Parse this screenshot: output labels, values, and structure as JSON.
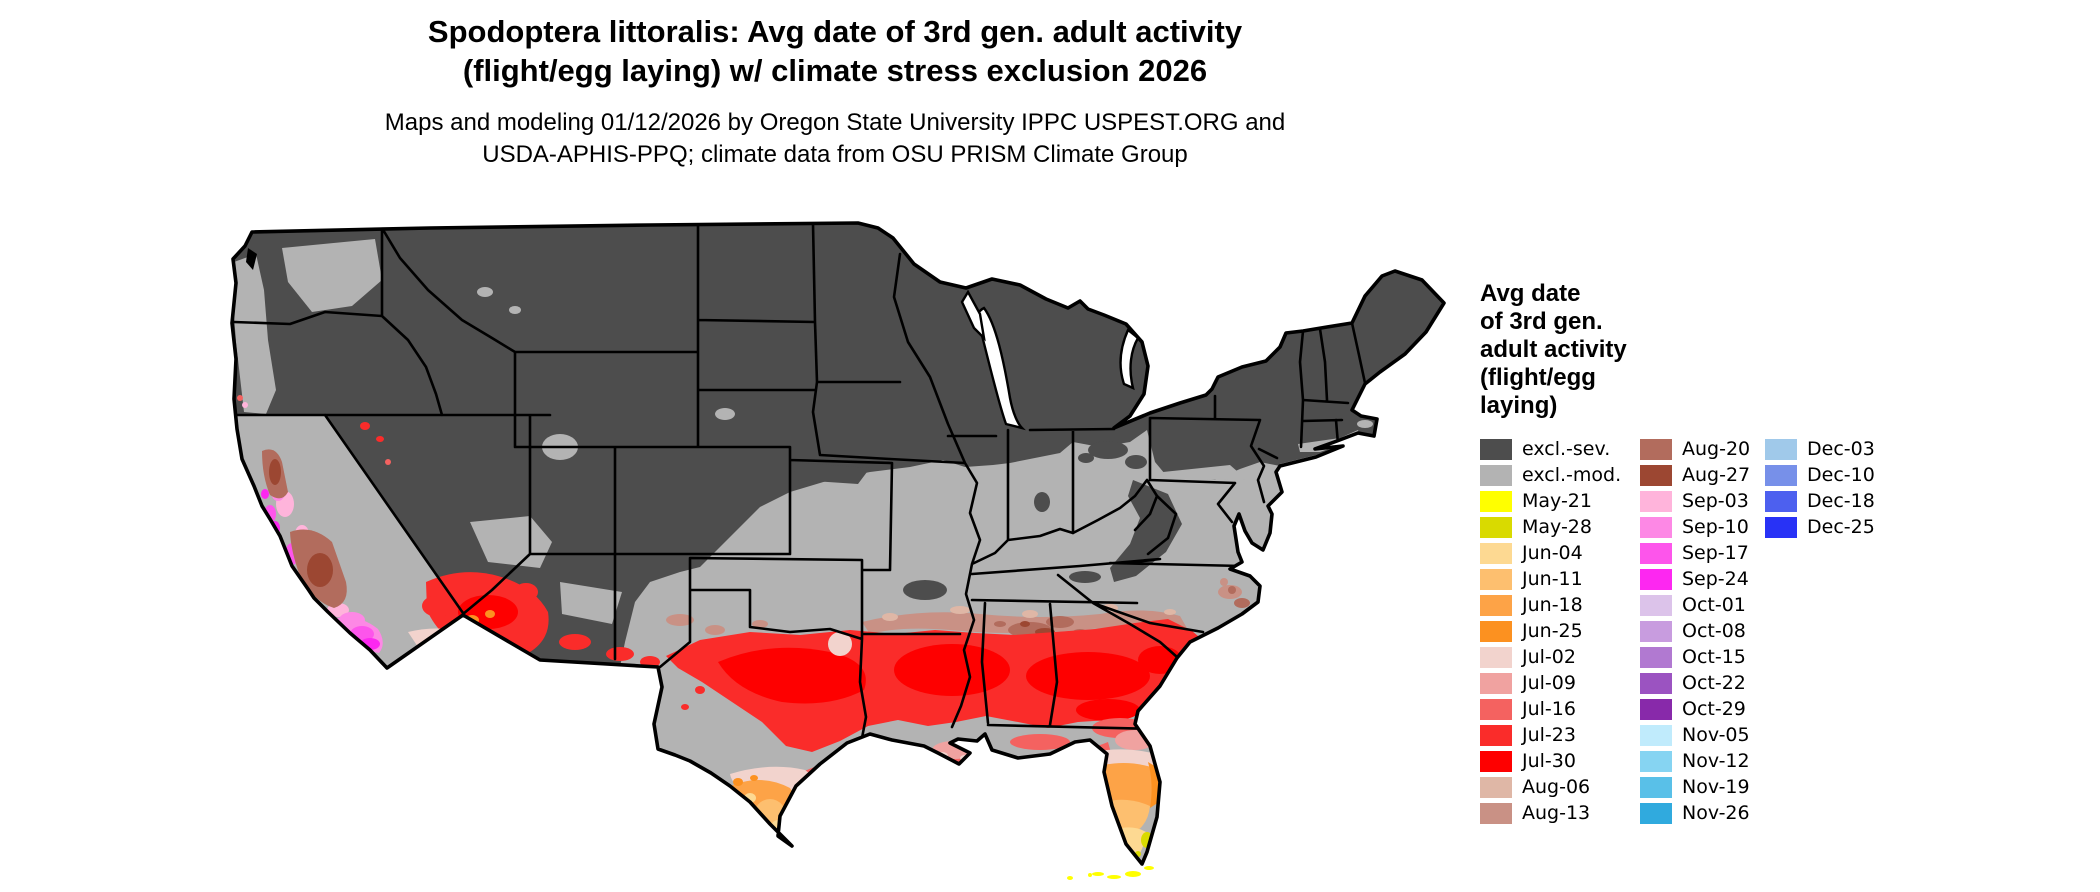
{
  "title": {
    "line1": "Spodoptera littoralis: Avg date of 3rd gen. adult activity",
    "line2": "(flight/egg laying) w/ climate stress exclusion 2026"
  },
  "subtitle": {
    "line1": "Maps and modeling 01/12/2026 by Oregon State University IPPC USPEST.ORG and",
    "line2": "USDA-APHIS-PPQ; climate data from OSU PRISM Climate Group"
  },
  "legend": {
    "title_lines": [
      "Avg date",
      "of 3rd gen.",
      "adult activity",
      "(flight/egg",
      "laying)"
    ],
    "columns": [
      [
        {
          "label": "excl.-sev.",
          "color": "#4d4d4d"
        },
        {
          "label": "excl.-mod.",
          "color": "#b3b3b3"
        },
        {
          "label": "May-21",
          "color": "#ffff00"
        },
        {
          "label": "May-28",
          "color": "#d9da00"
        },
        {
          "label": "Jun-04",
          "color": "#fdd992"
        },
        {
          "label": "Jun-11",
          "color": "#fdbf6f"
        },
        {
          "label": "Jun-18",
          "color": "#fda347"
        },
        {
          "label": "Jun-25",
          "color": "#fc9120"
        },
        {
          "label": "Jul-02",
          "color": "#f2d3cd"
        },
        {
          "label": "Jul-09",
          "color": "#f0a2a0"
        },
        {
          "label": "Jul-16",
          "color": "#f46260"
        },
        {
          "label": "Jul-23",
          "color": "#fa2c2a"
        },
        {
          "label": "Jul-30",
          "color": "#fe0000"
        },
        {
          "label": "Aug-06",
          "color": "#dfb7a6"
        },
        {
          "label": "Aug-13",
          "color": "#c99185"
        }
      ],
      [
        {
          "label": "Aug-20",
          "color": "#b26c5d"
        },
        {
          "label": "Aug-27",
          "color": "#9c4732"
        },
        {
          "label": "Sep-03",
          "color": "#ffb4db"
        },
        {
          "label": "Sep-10",
          "color": "#fd88e5"
        },
        {
          "label": "Sep-17",
          "color": "#fd55eb"
        },
        {
          "label": "Sep-24",
          "color": "#fd27f1"
        },
        {
          "label": "Oct-01",
          "color": "#dcc3ea"
        },
        {
          "label": "Oct-08",
          "color": "#c89cdf"
        },
        {
          "label": "Oct-15",
          "color": "#b179d1"
        },
        {
          "label": "Oct-22",
          "color": "#9b53c1"
        },
        {
          "label": "Oct-29",
          "color": "#8829aa"
        },
        {
          "label": "Nov-05",
          "color": "#c0ebfc"
        },
        {
          "label": "Nov-12",
          "color": "#86d4f2"
        },
        {
          "label": "Nov-19",
          "color": "#59c0e8"
        },
        {
          "label": "Nov-26",
          "color": "#30aade"
        }
      ],
      [
        {
          "label": "Dec-03",
          "color": "#a0c9ea"
        },
        {
          "label": "Dec-10",
          "color": "#7790e9"
        },
        {
          "label": "Dec-18",
          "color": "#4d60ef"
        },
        {
          "label": "Dec-25",
          "color": "#2832f6"
        }
      ]
    ]
  },
  "map": {
    "water_color": "#ffffff",
    "border_color": "#000000",
    "palette": {
      "excl_sev": "#4d4d4d",
      "excl_mod": "#b3b3b3",
      "may21": "#ffff00",
      "may28": "#d9da00",
      "jun04": "#fdd992",
      "jun11": "#fdbf6f",
      "jun18": "#fda347",
      "jun25": "#fc9120",
      "jul02": "#f2d3cd",
      "jul09": "#f0a2a0",
      "jul16": "#f46260",
      "jul23": "#fa2c2a",
      "jul30": "#fe0000",
      "aug06": "#dfb7a6",
      "aug13": "#c99185",
      "aug20": "#b26c5d",
      "aug27": "#9c4732",
      "sep03": "#ffb4db",
      "sep10": "#fd88e5",
      "sep17": "#fd55eb",
      "sep24": "#fd27f1",
      "oct01": "#dcc3ea",
      "oct08": "#c89cdf",
      "oct15": "#b179d1",
      "oct22": "#9b53c1",
      "oct29": "#8829aa",
      "nov05": "#c0ebfc",
      "nov12": "#86d4f2",
      "nov19": "#59c0e8",
      "nov26": "#30aade",
      "dec03": "#a0c9ea",
      "dec10": "#7790e9",
      "dec18": "#4d60ef",
      "dec25": "#2832f6"
    }
  }
}
